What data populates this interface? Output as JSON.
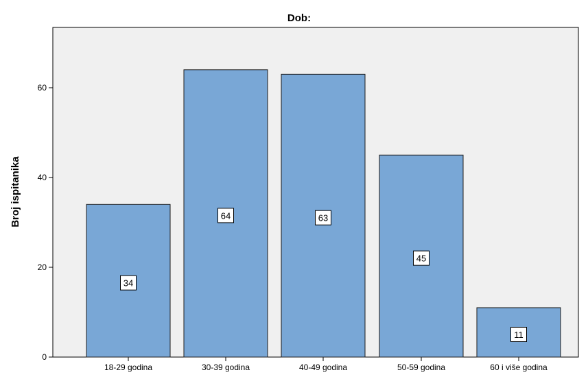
{
  "chart_data": {
    "type": "bar",
    "title": "Dob:",
    "xlabel": "",
    "ylabel": "Broj ispitanika",
    "categories": [
      "18-29 godina",
      "30-39 godina",
      "40-49 godina",
      "50-59 godina",
      "60 i više godina"
    ],
    "values": [
      34,
      64,
      63,
      45,
      11
    ],
    "data_labels": [
      "34",
      "64",
      "63",
      "45",
      "11"
    ],
    "yticks": [
      0,
      20,
      40,
      60
    ],
    "ylim": [
      0,
      74
    ],
    "grid": false,
    "legend": "none",
    "colors": {
      "bar_fill": "#79A7D6",
      "bar_stroke": "#1a1a1a",
      "plot_background": "#F0F0F0",
      "page_background": "#FFFFFF"
    }
  }
}
